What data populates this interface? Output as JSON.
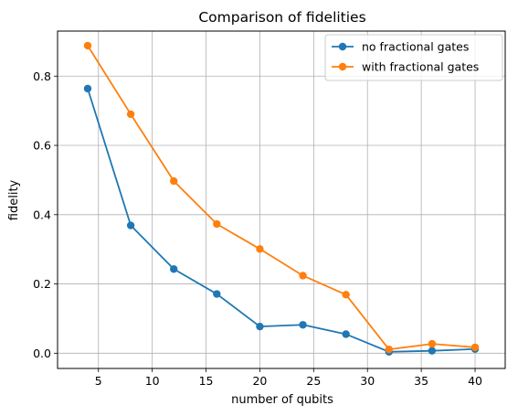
{
  "chart_data": {
    "type": "line",
    "title": "Comparison of fidelities",
    "xlabel": "number of qubits",
    "ylabel": "fidelity",
    "x": [
      4,
      8,
      12,
      16,
      20,
      24,
      28,
      32,
      36,
      40
    ],
    "xlim": [
      1.2,
      42.8
    ],
    "ylim": [
      -0.044,
      0.93
    ],
    "xticks": [
      5,
      10,
      15,
      20,
      25,
      30,
      35,
      40
    ],
    "xtick_labels": [
      "5",
      "10",
      "15",
      "20",
      "25",
      "30",
      "35",
      "40"
    ],
    "yticks": [
      0.0,
      0.2,
      0.4,
      0.6,
      0.8
    ],
    "ytick_labels": [
      "0.0",
      "0.2",
      "0.4",
      "0.6",
      "0.8"
    ],
    "grid": true,
    "legend_position": "top-right",
    "series": [
      {
        "name": "no fractional gates",
        "color": "#1f77b4",
        "marker": "circle",
        "values": [
          0.764,
          0.369,
          0.243,
          0.171,
          0.077,
          0.082,
          0.055,
          0.004,
          0.007,
          0.012
        ]
      },
      {
        "name": "with fractional gates",
        "color": "#ff7f0e",
        "marker": "circle",
        "values": [
          0.888,
          0.69,
          0.497,
          0.373,
          0.301,
          0.224,
          0.169,
          0.011,
          0.027,
          0.017
        ]
      }
    ]
  }
}
